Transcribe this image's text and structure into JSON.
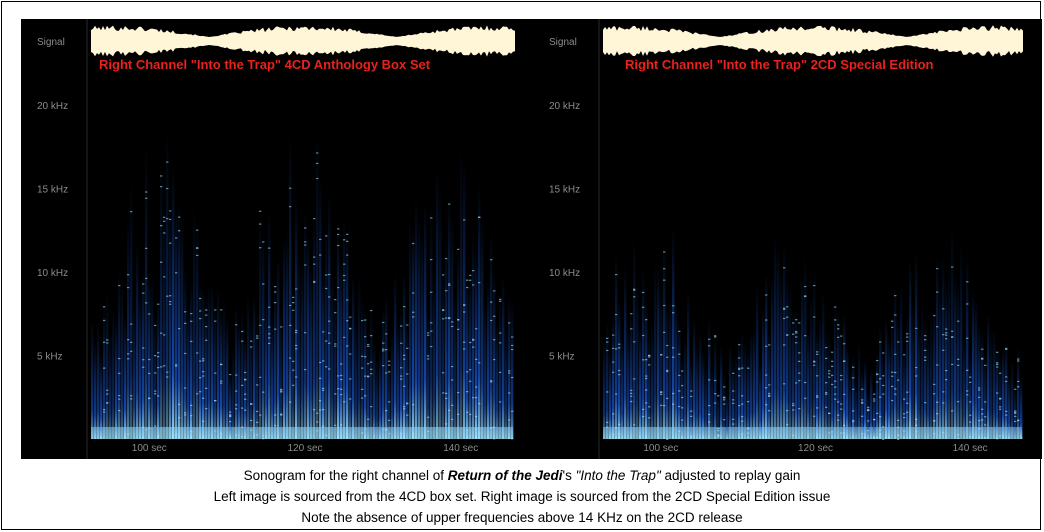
{
  "caption": {
    "line1": {
      "pre": "Sonogram for the right channel of ",
      "film": "Return of the Jedi",
      "mid": "'s ",
      "track": "\"Into the Trap\"",
      "post": " adjusted to replay gain"
    },
    "line2": "Left image is sourced from the 4CD box set. Right image is sourced from the 2CD Special Edition issue",
    "line3": "Note the absence of upper frequencies above 14 KHz on the 2CD release"
  },
  "colors": {
    "background": "#000000",
    "waveform": "#fff6d8",
    "title": "#e8221c",
    "axis_text": "#8c8c8c",
    "spectrum_low": "#1a5ad6",
    "spectrum_high": "#9fe6ff"
  },
  "chart_data": [
    {
      "type": "heatmap",
      "title": "Right Channel \"Into the Trap\" 4CD Anthology Box Set",
      "signal_label": "Signal",
      "y_ticks": [
        "20 kHz",
        "15 kHz",
        "10 kHz",
        "5 kHz"
      ],
      "y_tick_values_khz": [
        20,
        15,
        10,
        5
      ],
      "x_ticks": [
        "100 sec",
        "120 sec",
        "140 sec"
      ],
      "x_tick_values_sec": [
        100,
        120,
        140
      ],
      "xlim_sec": [
        92,
        148
      ],
      "ylim_khz": [
        0,
        22.05
      ],
      "max_frequency_khz": 20
    },
    {
      "type": "heatmap",
      "title": "Right Channel \"Into the Trap\" 2CD Special Edition",
      "signal_label": "Signal",
      "y_ticks": [
        "20 kHz",
        "15 kHz",
        "10 kHz",
        "5 kHz"
      ],
      "y_tick_values_khz": [
        20,
        15,
        10,
        5
      ],
      "x_ticks": [
        "100 sec",
        "120 sec",
        "140 sec"
      ],
      "x_tick_values_sec": [
        100,
        120,
        140
      ],
      "xlim_sec": [
        92,
        148
      ],
      "ylim_khz": [
        0,
        22.05
      ],
      "max_frequency_khz": 14
    }
  ]
}
